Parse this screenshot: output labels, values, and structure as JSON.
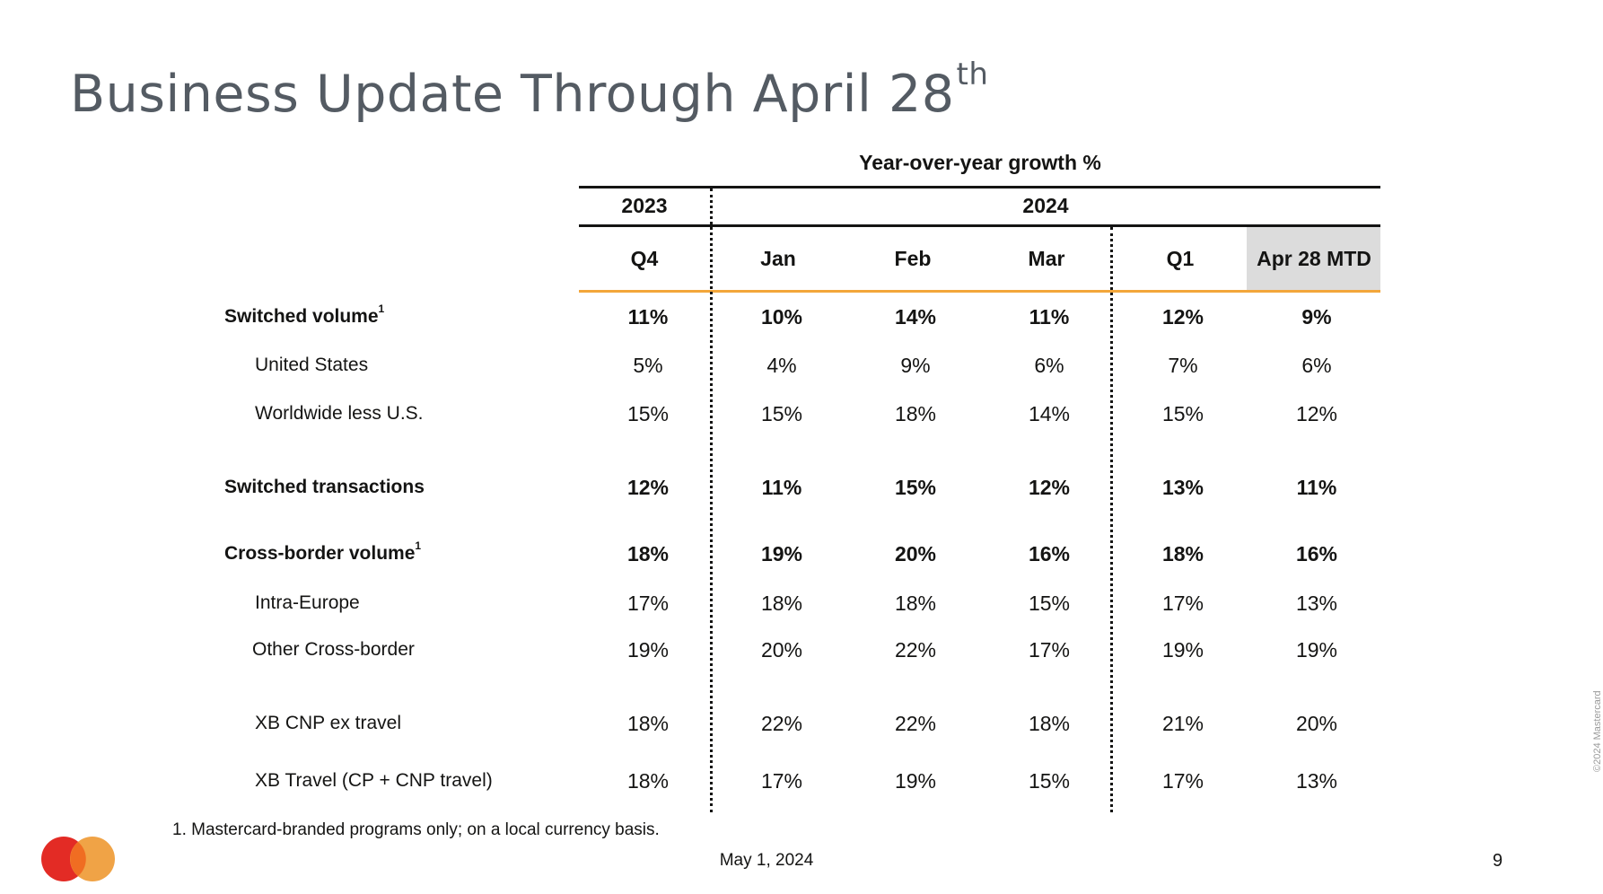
{
  "title": {
    "main": "Business Update Through April 28",
    "sup": "th"
  },
  "table": {
    "caption": "Year-over-year growth %",
    "years": [
      "2023",
      "2024"
    ],
    "columns": [
      "Q4",
      "Jan",
      "Feb",
      "Mar",
      "Q1",
      "Apr 28 MTD"
    ],
    "rows": [
      {
        "label": "Switched volume",
        "sup": "1",
        "bold": true,
        "values": [
          "11%",
          "10%",
          "14%",
          "11%",
          "12%",
          "9%"
        ]
      },
      {
        "label": "United States",
        "bold": false,
        "values": [
          "5%",
          "4%",
          "9%",
          "6%",
          "7%",
          "6%"
        ]
      },
      {
        "label": "Worldwide less U.S.",
        "bold": false,
        "values": [
          "15%",
          "15%",
          "18%",
          "14%",
          "15%",
          "12%"
        ]
      },
      {
        "label": "Switched transactions",
        "bold": true,
        "values": [
          "12%",
          "11%",
          "15%",
          "12%",
          "13%",
          "11%"
        ]
      },
      {
        "label": "Cross-border volume",
        "sup": "1",
        "bold": true,
        "values": [
          "18%",
          "19%",
          "20%",
          "16%",
          "18%",
          "16%"
        ]
      },
      {
        "label": "Intra-Europe",
        "bold": false,
        "values": [
          "17%",
          "18%",
          "18%",
          "15%",
          "17%",
          "13%"
        ]
      },
      {
        "label": "Other Cross-border",
        "bold": false,
        "values": [
          "19%",
          "20%",
          "22%",
          "17%",
          "19%",
          "19%"
        ]
      },
      {
        "label": "XB CNP ex travel",
        "bold": false,
        "values": [
          "18%",
          "22%",
          "22%",
          "18%",
          "21%",
          "20%"
        ]
      },
      {
        "label": "XB Travel (CP + CNP travel)",
        "bold": false,
        "values": [
          "18%",
          "17%",
          "19%",
          "15%",
          "17%",
          "13%"
        ]
      }
    ]
  },
  "footnote": "1.  Mastercard-branded programs only; on a local currency basis.",
  "footer": {
    "date": "May 1, 2024",
    "page": "9",
    "copyright": "©2024 Mastercard"
  },
  "logo": {
    "left_color": "#e32b25",
    "right_color": "#f0a346",
    "overlap_color": "#f06d22"
  }
}
